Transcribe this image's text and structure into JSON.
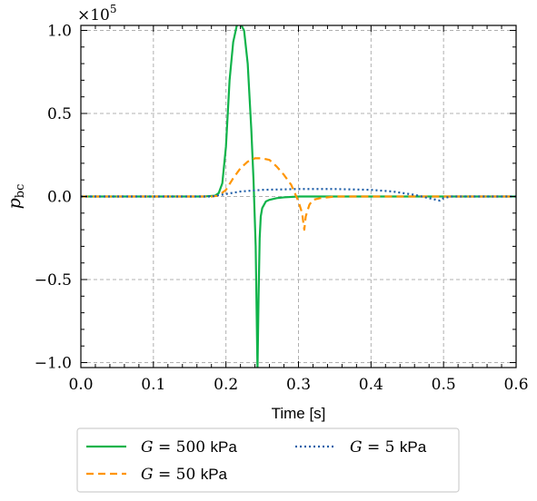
{
  "chart_data": {
    "type": "line",
    "xlabel": "Time [s]",
    "ylabel": "p",
    "ylabel_sub": "bc",
    "y_multiplier": "×10",
    "y_multiplier_exp": "5",
    "xlim": [
      0.0,
      0.6
    ],
    "ylim": [
      -1.03,
      1.03
    ],
    "xticks": [
      0.0,
      0.1,
      0.2,
      0.3,
      0.4,
      0.5,
      0.6
    ],
    "xtick_labels": [
      "0.0",
      "0.1",
      "0.2",
      "0.3",
      "0.4",
      "0.5",
      "0.6"
    ],
    "yticks": [
      -1.0,
      -0.5,
      0.0,
      0.5,
      1.0
    ],
    "ytick_labels": [
      "−1.0",
      "−0.5",
      "0.0",
      "0.5",
      "1.0"
    ],
    "grid": true,
    "legend_position": "below",
    "series": [
      {
        "name": "G = 500 kPa",
        "label_var": "G",
        "label_value": "500",
        "label_unit": "kPa",
        "color": "#10b34a",
        "dash": "solid",
        "x": [
          0.0,
          0.17,
          0.185,
          0.19,
          0.195,
          0.2,
          0.205,
          0.21,
          0.215,
          0.22,
          0.225,
          0.23,
          0.235,
          0.238,
          0.241,
          0.2435,
          0.245,
          0.2465,
          0.248,
          0.25,
          0.255,
          0.26,
          0.27,
          0.28,
          0.3,
          0.4,
          0.6
        ],
        "y": [
          0.0,
          0.0,
          0.005,
          0.02,
          0.08,
          0.3,
          0.7,
          0.93,
          1.03,
          1.04,
          1.0,
          0.8,
          0.4,
          0.1,
          -0.3,
          -1.05,
          -0.6,
          -0.25,
          -0.12,
          -0.07,
          -0.03,
          -0.02,
          -0.01,
          -0.005,
          0.0,
          0.0,
          0.0
        ]
      },
      {
        "name": "G = 50 kPa",
        "label_var": "G",
        "label_value": "50",
        "label_unit": "kPa",
        "color": "#ff9500",
        "dash": "dashed",
        "x": [
          0.0,
          0.18,
          0.19,
          0.2,
          0.21,
          0.22,
          0.23,
          0.24,
          0.25,
          0.26,
          0.27,
          0.28,
          0.29,
          0.3,
          0.305,
          0.308,
          0.31,
          0.315,
          0.32,
          0.33,
          0.35,
          0.4,
          0.6
        ],
        "y": [
          0.0,
          0.0,
          0.005,
          0.04,
          0.11,
          0.17,
          0.21,
          0.23,
          0.23,
          0.22,
          0.18,
          0.13,
          0.07,
          -0.03,
          -0.1,
          -0.2,
          -0.12,
          -0.05,
          -0.02,
          -0.01,
          0.0,
          0.0,
          0.0
        ]
      },
      {
        "name": "G = 5 kPa",
        "label_var": "G",
        "label_value": "5",
        "label_unit": "kPa",
        "color": "#1f5fa8",
        "dash": "dotted",
        "x": [
          0.0,
          0.18,
          0.2,
          0.22,
          0.25,
          0.3,
          0.35,
          0.4,
          0.43,
          0.46,
          0.48,
          0.49,
          0.495,
          0.5,
          0.51,
          0.53,
          0.6
        ],
        "y": [
          0.0,
          0.0,
          0.015,
          0.03,
          0.04,
          0.045,
          0.045,
          0.04,
          0.03,
          0.01,
          -0.01,
          -0.02,
          -0.025,
          -0.01,
          0.0,
          0.0,
          0.0
        ]
      }
    ]
  }
}
